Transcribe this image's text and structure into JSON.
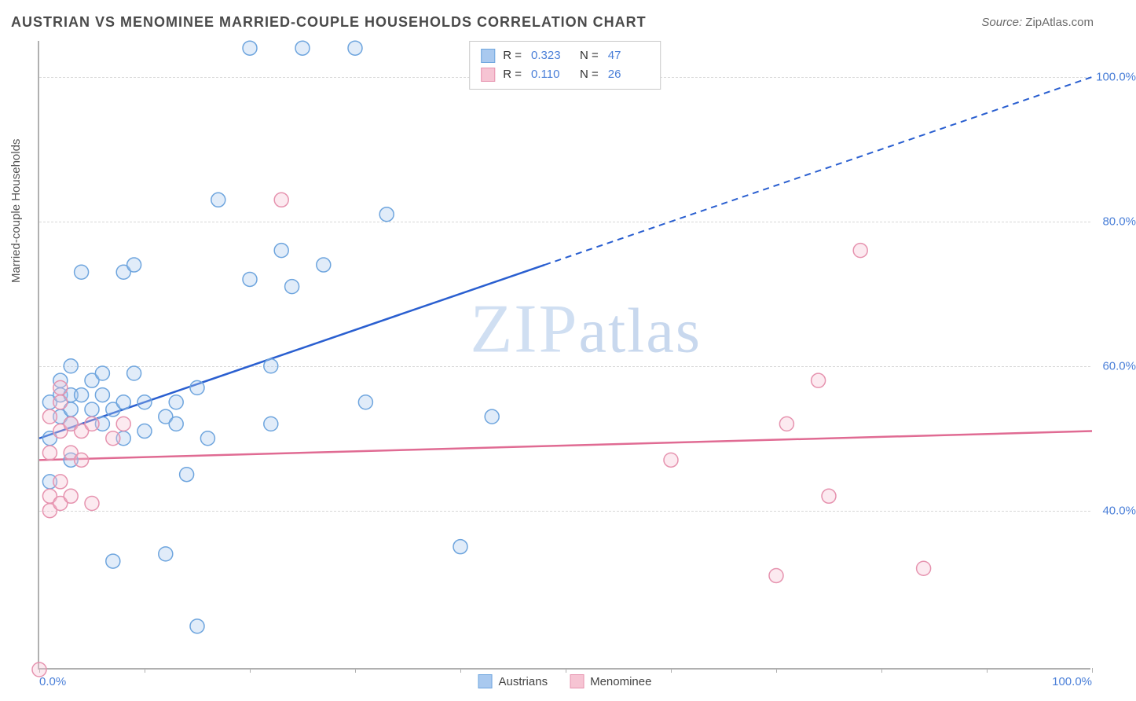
{
  "title": "AUSTRIAN VS MENOMINEE MARRIED-COUPLE HOUSEHOLDS CORRELATION CHART",
  "source_label": "Source: ",
  "source_value": "ZipAtlas.com",
  "y_axis_label": "Married-couple Households",
  "watermark_1": "ZIP",
  "watermark_2": "atlas",
  "chart": {
    "type": "scatter",
    "xlim": [
      0,
      100
    ],
    "ylim": [
      18,
      105
    ],
    "y_gridlines": [
      40,
      60,
      80,
      100
    ],
    "y_tick_labels": [
      "40.0%",
      "60.0%",
      "80.0%",
      "100.0%"
    ],
    "x_ticks": [
      0,
      10,
      20,
      30,
      40,
      50,
      60,
      70,
      80,
      90,
      100
    ],
    "x_tick_labels": {
      "0": "0.0%",
      "100": "100.0%"
    },
    "background_color": "#ffffff",
    "grid_color": "#d8d8d8",
    "axis_color": "#b0b0b0",
    "label_color": "#4a7fd8",
    "series": [
      {
        "name": "Austrians",
        "fill": "#a9c9ef",
        "stroke": "#6ea5de",
        "marker_radius": 9,
        "r_value": "0.323",
        "n_value": "47",
        "trend": {
          "color": "#2a5fd0",
          "y_at_x0": 50,
          "y_at_x100": 100,
          "solid_until_x": 48
        },
        "points": [
          [
            1,
            44
          ],
          [
            1,
            50
          ],
          [
            1,
            55
          ],
          [
            2,
            53
          ],
          [
            2,
            56
          ],
          [
            2,
            58
          ],
          [
            3,
            47
          ],
          [
            3,
            52
          ],
          [
            3,
            54
          ],
          [
            3,
            56
          ],
          [
            3,
            60
          ],
          [
            4,
            56
          ],
          [
            4,
            73
          ],
          [
            5,
            54
          ],
          [
            5,
            58
          ],
          [
            6,
            52
          ],
          [
            6,
            56
          ],
          [
            6,
            59
          ],
          [
            7,
            33
          ],
          [
            7,
            54
          ],
          [
            8,
            50
          ],
          [
            8,
            55
          ],
          [
            8,
            73
          ],
          [
            9,
            59
          ],
          [
            9,
            74
          ],
          [
            10,
            51
          ],
          [
            10,
            55
          ],
          [
            12,
            34
          ],
          [
            12,
            53
          ],
          [
            13,
            52
          ],
          [
            13,
            55
          ],
          [
            14,
            45
          ],
          [
            15,
            24
          ],
          [
            15,
            57
          ],
          [
            16,
            50
          ],
          [
            17,
            83
          ],
          [
            20,
            72
          ],
          [
            20,
            104
          ],
          [
            22,
            52
          ],
          [
            22,
            60
          ],
          [
            23,
            76
          ],
          [
            24,
            71
          ],
          [
            25,
            104
          ],
          [
            27,
            74
          ],
          [
            30,
            104
          ],
          [
            31,
            55
          ],
          [
            33,
            81
          ],
          [
            40,
            35
          ],
          [
            43,
            53
          ]
        ]
      },
      {
        "name": "Menominee",
        "fill": "#f6c4d3",
        "stroke": "#e693af",
        "marker_radius": 9,
        "r_value": "0.110",
        "n_value": "26",
        "trend": {
          "color": "#e06b93",
          "y_at_x0": 47,
          "y_at_x100": 51,
          "solid_until_x": 100
        },
        "points": [
          [
            0,
            18
          ],
          [
            1,
            40
          ],
          [
            1,
            42
          ],
          [
            1,
            48
          ],
          [
            1,
            53
          ],
          [
            2,
            41
          ],
          [
            2,
            44
          ],
          [
            2,
            51
          ],
          [
            2,
            55
          ],
          [
            2,
            57
          ],
          [
            3,
            42
          ],
          [
            3,
            48
          ],
          [
            3,
            52
          ],
          [
            4,
            47
          ],
          [
            4,
            51
          ],
          [
            5,
            41
          ],
          [
            5,
            52
          ],
          [
            7,
            50
          ],
          [
            8,
            52
          ],
          [
            23,
            83
          ],
          [
            60,
            47
          ],
          [
            70,
            31
          ],
          [
            71,
            52
          ],
          [
            74,
            58
          ],
          [
            75,
            42
          ],
          [
            78,
            76
          ],
          [
            84,
            32
          ]
        ]
      }
    ]
  },
  "legend_top": {
    "r_label": "R =",
    "n_label": "N ="
  }
}
